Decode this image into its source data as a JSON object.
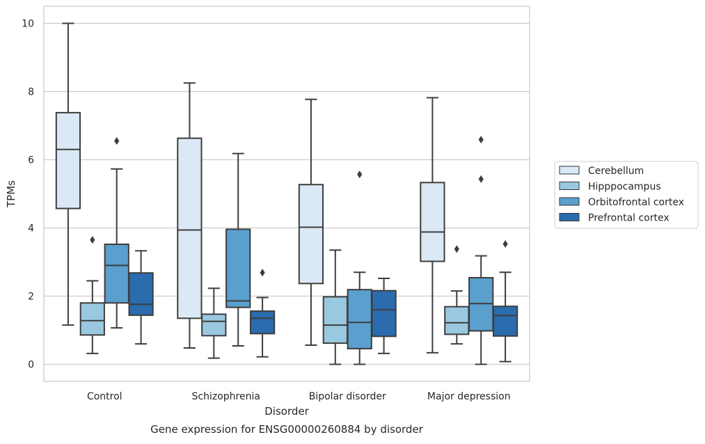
{
  "chart_data": {
    "type": "boxplot",
    "caption": "Gene expression for ENSG00000260884 by disorder",
    "xlabel": "Disorder",
    "ylabel": "TPMs",
    "ylim": [
      -0.5,
      10.5
    ],
    "yticks": [
      0,
      2,
      4,
      6,
      8,
      10
    ],
    "grid": true,
    "legend_position": "right",
    "categories": [
      "Control",
      "Schizophrenia",
      "Bipolar disorder",
      "Major depression"
    ],
    "series": [
      {
        "name": "Cerebellum",
        "color": "#dbe9f6",
        "boxes": [
          {
            "whislo": 1.15,
            "q1": 4.57,
            "med": 6.3,
            "q3": 7.38,
            "whishi": 10.0,
            "fliers": []
          },
          {
            "whislo": 0.48,
            "q1": 1.35,
            "med": 3.94,
            "q3": 6.63,
            "whishi": 8.25,
            "fliers": []
          },
          {
            "whislo": 0.56,
            "q1": 2.37,
            "med": 4.02,
            "q3": 5.27,
            "whishi": 7.77,
            "fliers": []
          },
          {
            "whislo": 0.34,
            "q1": 3.02,
            "med": 3.88,
            "q3": 5.33,
            "whishi": 7.82,
            "fliers": []
          }
        ]
      },
      {
        "name": "Hipppocampus",
        "color": "#9ac8e0",
        "boxes": [
          {
            "whislo": 0.32,
            "q1": 0.86,
            "med": 1.28,
            "q3": 1.8,
            "whishi": 2.45,
            "fliers": [
              3.65
            ]
          },
          {
            "whislo": 0.18,
            "q1": 0.84,
            "med": 1.26,
            "q3": 1.47,
            "whishi": 2.23,
            "fliers": []
          },
          {
            "whislo": 0.0,
            "q1": 0.62,
            "med": 1.15,
            "q3": 1.98,
            "whishi": 3.35,
            "fliers": []
          },
          {
            "whislo": 0.6,
            "q1": 0.88,
            "med": 1.22,
            "q3": 1.69,
            "whishi": 2.15,
            "fliers": [
              3.38
            ]
          }
        ]
      },
      {
        "name": "Orbitofrontal cortex",
        "color": "#5a9fcd",
        "boxes": [
          {
            "whislo": 1.07,
            "q1": 1.8,
            "med": 2.9,
            "q3": 3.52,
            "whishi": 5.73,
            "fliers": [
              6.55
            ]
          },
          {
            "whislo": 0.54,
            "q1": 1.67,
            "med": 1.86,
            "q3": 3.96,
            "whishi": 6.18,
            "fliers": []
          },
          {
            "whislo": 0.0,
            "q1": 0.46,
            "med": 1.23,
            "q3": 2.19,
            "whishi": 2.7,
            "fliers": [
              5.57
            ]
          },
          {
            "whislo": 0.0,
            "q1": 0.98,
            "med": 1.78,
            "q3": 2.54,
            "whishi": 3.18,
            "fliers": [
              6.59,
              5.43
            ]
          }
        ]
      },
      {
        "name": "Prefrontal cortex",
        "color": "#2a6cae",
        "boxes": [
          {
            "whislo": 0.6,
            "q1": 1.44,
            "med": 1.76,
            "q3": 2.68,
            "whishi": 3.33,
            "fliers": []
          },
          {
            "whislo": 0.22,
            "q1": 0.9,
            "med": 1.35,
            "q3": 1.56,
            "whishi": 1.96,
            "fliers": [
              2.69
            ]
          },
          {
            "whislo": 0.32,
            "q1": 0.82,
            "med": 1.6,
            "q3": 2.16,
            "whishi": 2.52,
            "fliers": []
          },
          {
            "whislo": 0.08,
            "q1": 0.83,
            "med": 1.43,
            "q3": 1.7,
            "whishi": 2.7,
            "fliers": [
              3.53
            ]
          }
        ]
      }
    ]
  }
}
